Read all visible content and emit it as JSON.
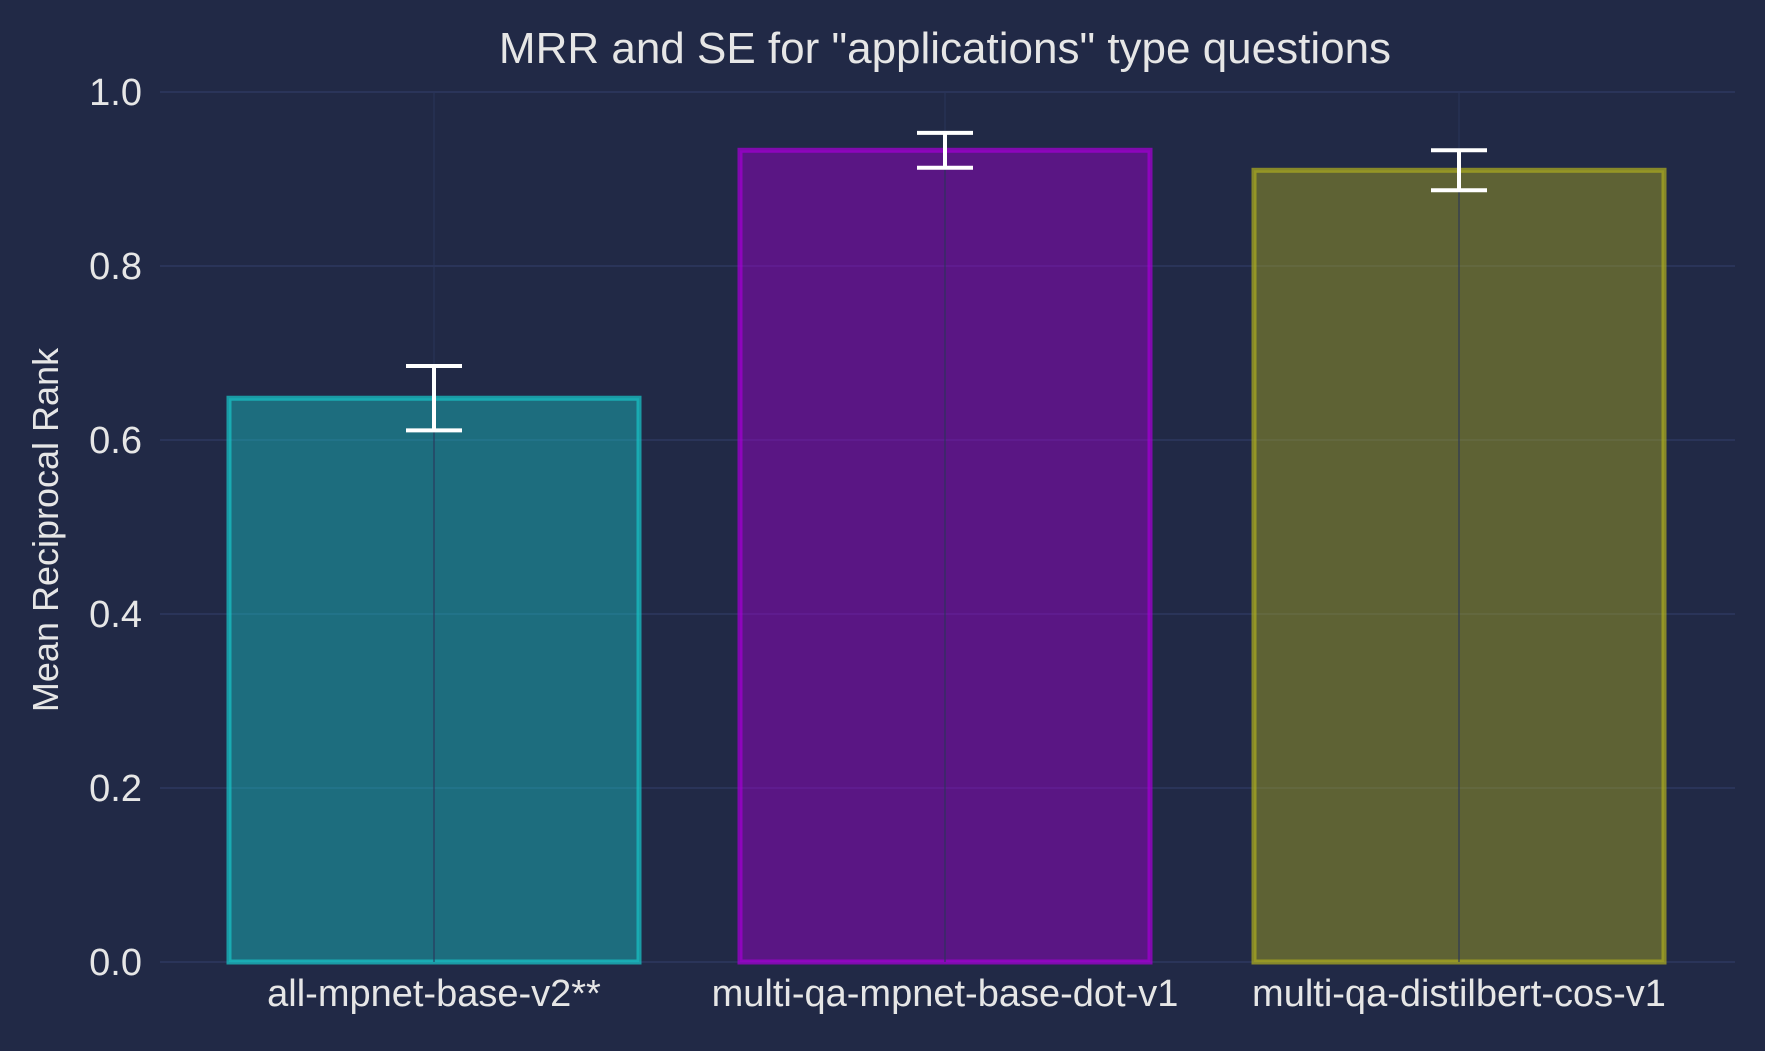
{
  "chart_data": {
    "type": "bar",
    "title": "MRR and SE for \"applications\" type questions",
    "xlabel": "",
    "ylabel": "Mean Reciprocal Rank",
    "ylim": [
      0,
      1.0
    ],
    "yticks": [
      0.0,
      0.2,
      0.4,
      0.6,
      0.8,
      1.0
    ],
    "ytick_labels": [
      "0.0",
      "0.2",
      "0.4",
      "0.6",
      "0.8",
      "1.0"
    ],
    "grid": true,
    "categories": [
      "all-mpnet-base-v2**",
      "multi-qa-mpnet-base-dot-v1",
      "multi-qa-distilbert-cos-v1"
    ],
    "values": [
      0.648,
      0.933,
      0.91
    ],
    "errors": [
      0.037,
      0.02,
      0.023
    ],
    "bar_colors": [
      "#18c0c4",
      "#a000d0",
      "#a8a820"
    ],
    "colors": {
      "background": "#212946",
      "grid": "#2a3459",
      "text": "#e6e6e6",
      "errorbar": "#ffffff"
    }
  }
}
